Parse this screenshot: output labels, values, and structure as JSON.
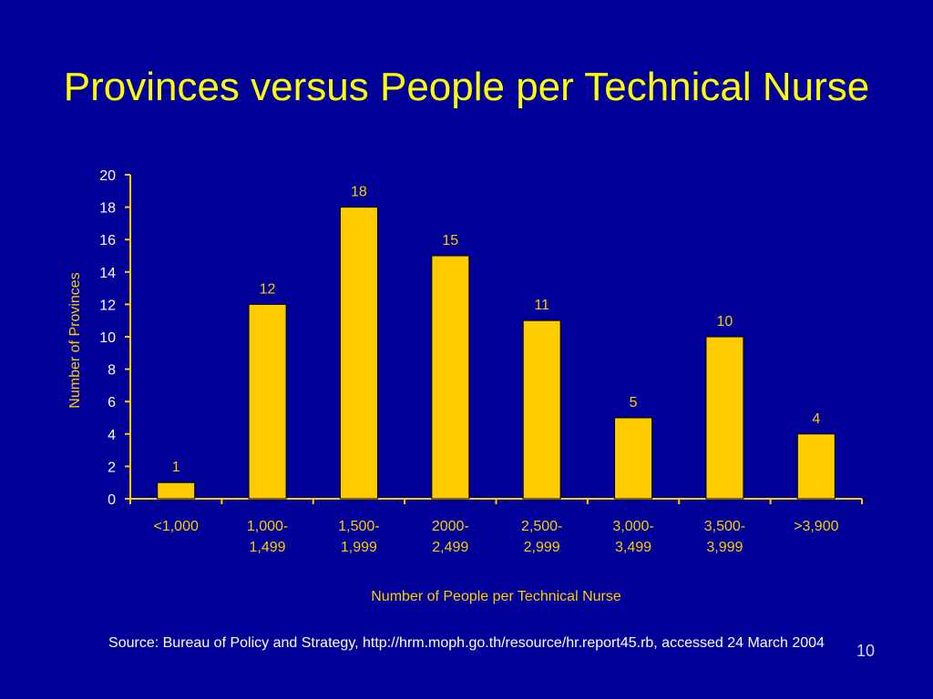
{
  "slide": {
    "title": "Provinces versus People per Technical Nurse",
    "source": "Source: Bureau of Policy and Strategy, http://hrm.moph.go.th/resource/hr.report45.rb, accessed 24 March 2004",
    "page_number": "10"
  },
  "colors": {
    "background": "#000099",
    "title": "#FFFF00",
    "bar": "#FFCC00",
    "axis_text": "#FFCC00",
    "tick_text": "#FFFFFF",
    "source_text": "#FFFFFF"
  },
  "chart_data": {
    "type": "bar",
    "categories": [
      [
        "<1,000"
      ],
      [
        "1,000-",
        "1,499"
      ],
      [
        "1,500-",
        "1,999"
      ],
      [
        "2000-",
        "2,499"
      ],
      [
        "2,500-",
        "2,999"
      ],
      [
        "3,000-",
        "3,499"
      ],
      [
        "3,500-",
        "3,999"
      ],
      [
        ">3,900"
      ]
    ],
    "values": [
      1,
      12,
      18,
      15,
      11,
      5,
      10,
      4
    ],
    "xlabel": "Number of People per Technical Nurse",
    "ylabel": "Number of Provinces",
    "ylim": [
      0,
      20
    ],
    "yticks": [
      0,
      2,
      4,
      6,
      8,
      10,
      12,
      14,
      16,
      18,
      20
    ],
    "grid": false,
    "legend": "none",
    "data_labels": true
  }
}
